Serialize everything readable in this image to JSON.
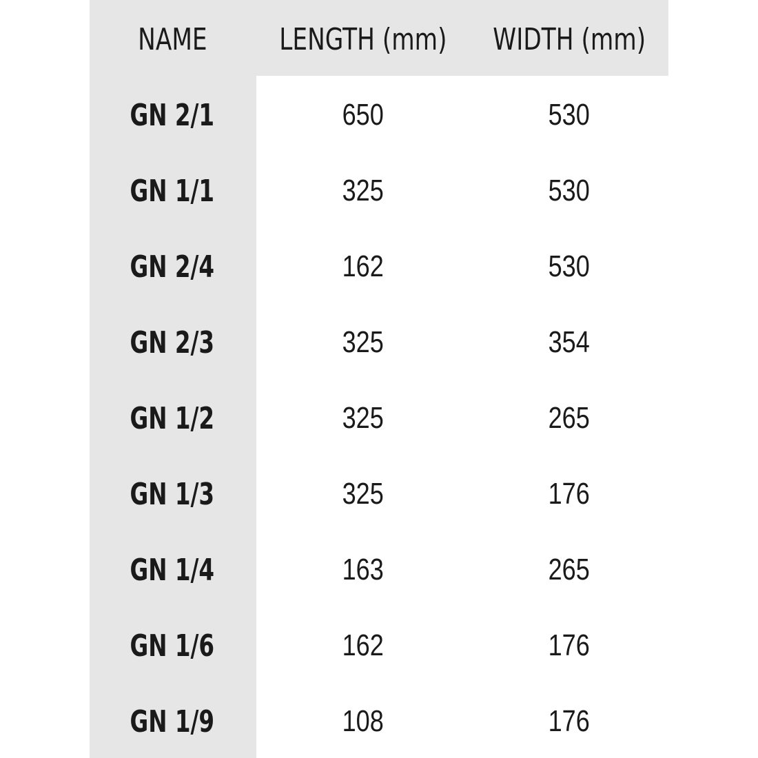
{
  "table": {
    "header": [
      "NAME",
      "LENGTH (mm)",
      "WIDTH (mm)"
    ],
    "rows": [
      [
        "GN 2/1",
        650,
        530
      ],
      [
        "GN 1/1",
        325,
        530
      ],
      [
        "GN 2/4",
        162,
        530
      ],
      [
        "GN 2/3",
        325,
        354
      ],
      [
        "GN 1/2",
        325,
        265
      ],
      [
        "GN 1/3",
        325,
        176
      ],
      [
        "GN 1/4",
        163,
        265
      ],
      [
        "GN 1/6",
        162,
        176
      ],
      [
        "GN 1/9",
        108,
        176
      ]
    ]
  }
}
